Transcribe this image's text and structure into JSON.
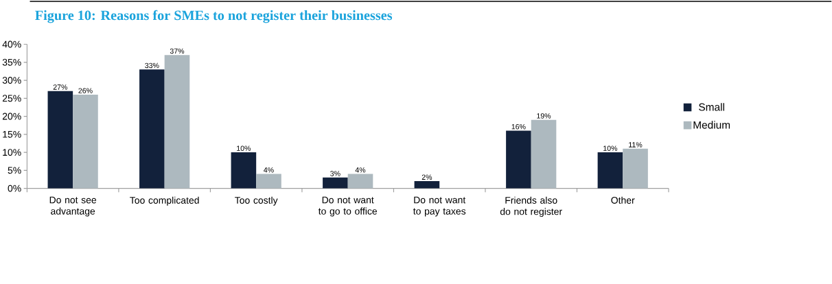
{
  "chart_data": {
    "type": "bar",
    "title": "Figure 10: Reasons for SMEs to not register their businesses",
    "categories": [
      "Do not see advantage",
      "Too complicated",
      "Too costly",
      "Do not want to go to office",
      "Do not want to pay taxes",
      "Friends also do not register",
      "Other"
    ],
    "series": [
      {
        "name": "Small",
        "color": "#12213b",
        "values": [
          27,
          33,
          10,
          3,
          2,
          16,
          10
        ],
        "value_labels": [
          "27%",
          "33%",
          "10%",
          "3%",
          "2%",
          "16%",
          "10%"
        ]
      },
      {
        "name": "Medium",
        "color": "#adb9bf",
        "values": [
          26,
          37,
          4,
          4,
          null,
          19,
          11
        ],
        "value_labels": [
          "26%",
          "37%",
          "4%",
          "4%",
          null,
          "19%",
          "11%"
        ]
      }
    ],
    "ylim": [
      0,
      40
    ],
    "yticks": [
      {
        "value": 0,
        "label": "0%"
      },
      {
        "value": 5,
        "label": "5%"
      },
      {
        "value": 10,
        "label": "10%"
      },
      {
        "value": 15,
        "label": "15%"
      },
      {
        "value": 20,
        "label": "20%"
      },
      {
        "value": 25,
        "label": "25%"
      },
      {
        "value": 30,
        "label": "30%"
      },
      {
        "value": 35,
        "label": "35%"
      },
      {
        "value": 40,
        "label": "40%"
      }
    ],
    "legend": "right"
  }
}
